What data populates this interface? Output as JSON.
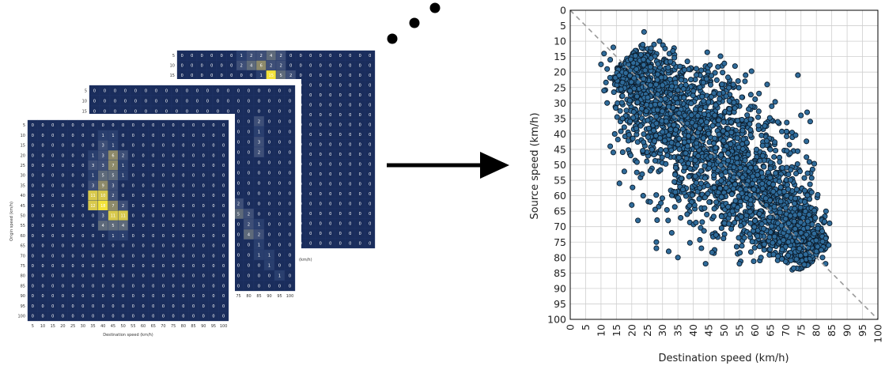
{
  "heatmaps": {
    "description_order": [
      "back",
      "middle",
      "front"
    ],
    "bins": [
      "5",
      "10",
      "15",
      "20",
      "25",
      "30",
      "35",
      "40",
      "45",
      "50",
      "55",
      "60",
      "65",
      "70",
      "75",
      "80",
      "85",
      "90",
      "95",
      "100"
    ],
    "front": {
      "xlabel": "Destination speed (km/h)",
      "ylabel": "Origin speed (km/h)",
      "hot_cells": [
        {
          "r": 1,
          "c": 7,
          "v": "1"
        },
        {
          "r": 1,
          "c": 8,
          "v": "1"
        },
        {
          "r": 2,
          "c": 7,
          "v": "3"
        },
        {
          "r": 2,
          "c": 8,
          "v": "1"
        },
        {
          "r": 3,
          "c": 6,
          "v": "1"
        },
        {
          "r": 3,
          "c": 7,
          "v": "3"
        },
        {
          "r": 3,
          "c": 8,
          "v": "6"
        },
        {
          "r": 3,
          "c": 9,
          "v": "2"
        },
        {
          "r": 4,
          "c": 6,
          "v": "3"
        },
        {
          "r": 4,
          "c": 7,
          "v": "3"
        },
        {
          "r": 4,
          "c": 8,
          "v": "7"
        },
        {
          "r": 4,
          "c": 9,
          "v": "1"
        },
        {
          "r": 5,
          "c": 6,
          "v": "1"
        },
        {
          "r": 5,
          "c": 7,
          "v": "5"
        },
        {
          "r": 5,
          "c": 8,
          "v": "5"
        },
        {
          "r": 5,
          "c": 9,
          "v": "1"
        },
        {
          "r": 6,
          "c": 6,
          "v": "3"
        },
        {
          "r": 6,
          "c": 7,
          "v": "9"
        },
        {
          "r": 6,
          "c": 8,
          "v": "3"
        },
        {
          "r": 7,
          "c": 6,
          "v": "11"
        },
        {
          "r": 7,
          "c": 7,
          "v": "10"
        },
        {
          "r": 7,
          "c": 8,
          "v": "2"
        },
        {
          "r": 8,
          "c": 6,
          "v": "12"
        },
        {
          "r": 8,
          "c": 7,
          "v": "18"
        },
        {
          "r": 8,
          "c": 8,
          "v": "7"
        },
        {
          "r": 8,
          "c": 9,
          "v": "2"
        },
        {
          "r": 9,
          "c": 7,
          "v": "3"
        },
        {
          "r": 9,
          "c": 8,
          "v": "11"
        },
        {
          "r": 9,
          "c": 9,
          "v": "11"
        },
        {
          "r": 10,
          "c": 7,
          "v": "4"
        },
        {
          "r": 10,
          "c": 8,
          "v": "5"
        },
        {
          "r": 10,
          "c": 9,
          "v": "4"
        },
        {
          "r": 11,
          "c": 8,
          "v": "1"
        },
        {
          "r": 11,
          "c": 9,
          "v": "1"
        }
      ]
    },
    "middle": {
      "xlabel": "(km/h)",
      "x_tick_fragment": [
        "75",
        "80",
        "85",
        "90",
        "95",
        "100"
      ],
      "hot_cells": [
        {
          "r": 11,
          "c": 14,
          "v": "2"
        },
        {
          "r": 12,
          "c": 14,
          "v": "5"
        },
        {
          "r": 12,
          "c": 15,
          "v": "2"
        },
        {
          "r": 13,
          "c": 15,
          "v": "2"
        },
        {
          "r": 13,
          "c": 16,
          "v": "1"
        },
        {
          "r": 14,
          "c": 15,
          "v": "4"
        },
        {
          "r": 14,
          "c": 16,
          "v": "2"
        },
        {
          "r": 15,
          "c": 16,
          "v": "1"
        },
        {
          "r": 16,
          "c": 16,
          "v": "1"
        },
        {
          "r": 16,
          "c": 17,
          "v": "1"
        },
        {
          "r": 17,
          "c": 17,
          "v": "1"
        },
        {
          "r": 18,
          "c": 18,
          "v": "1"
        },
        {
          "r": 3,
          "c": 16,
          "v": "2"
        },
        {
          "r": 4,
          "c": 16,
          "v": "1"
        },
        {
          "r": 5,
          "c": 16,
          "v": "3"
        },
        {
          "r": 6,
          "c": 16,
          "v": "2"
        }
      ]
    },
    "back": {
      "hot_cells": [
        {
          "r": 0,
          "c": 6,
          "v": "1"
        },
        {
          "r": 0,
          "c": 7,
          "v": "2"
        },
        {
          "r": 0,
          "c": 8,
          "v": "2"
        },
        {
          "r": 0,
          "c": 9,
          "v": "4"
        },
        {
          "r": 0,
          "c": 10,
          "v": "2"
        },
        {
          "r": 1,
          "c": 6,
          "v": "2"
        },
        {
          "r": 1,
          "c": 7,
          "v": "4"
        },
        {
          "r": 1,
          "c": 8,
          "v": "6"
        },
        {
          "r": 1,
          "c": 9,
          "v": "2"
        },
        {
          "r": 1,
          "c": 10,
          "v": "2"
        },
        {
          "r": 2,
          "c": 8,
          "v": "1"
        },
        {
          "r": 2,
          "c": 9,
          "v": "15"
        },
        {
          "r": 2,
          "c": 10,
          "v": "5"
        },
        {
          "r": 2,
          "c": 11,
          "v": "2"
        }
      ]
    }
  },
  "chart_data": {
    "type": "scatter",
    "xlabel": "Destination speed (km/h)",
    "ylabel": "Source speed (km/h)",
    "xlim": [
      0,
      100
    ],
    "ylim": [
      100,
      0
    ],
    "y_inverted": true,
    "x_ticks": [
      0,
      5,
      10,
      15,
      20,
      25,
      30,
      35,
      40,
      45,
      50,
      55,
      60,
      65,
      70,
      75,
      80,
      85,
      90,
      95,
      100
    ],
    "y_ticks": [
      0,
      5,
      10,
      15,
      20,
      25,
      30,
      35,
      40,
      45,
      50,
      55,
      60,
      65,
      70,
      75,
      80,
      85,
      90,
      95,
      100
    ],
    "grid": true,
    "marker_color": "#2f6b9a",
    "marker_edge": "#0b1c2c",
    "reference_line": {
      "from": [
        0,
        0
      ],
      "to": [
        100,
        100
      ],
      "style": "dashed",
      "color": "#999999"
    },
    "cloud": {
      "axis_points": [
        [
          18,
          16
        ],
        [
          80,
          80
        ]
      ],
      "center": [
        45,
        48
      ],
      "half_width": 15,
      "approx_points": 2600
    },
    "outliers": [
      [
        10,
        17.5
      ],
      [
        11,
        14
      ],
      [
        12,
        19
      ],
      [
        13,
        16
      ],
      [
        14,
        12
      ],
      [
        24,
        7
      ],
      [
        29,
        10
      ],
      [
        13,
        44
      ],
      [
        14,
        46
      ],
      [
        16,
        56
      ],
      [
        20,
        63
      ],
      [
        28,
        75
      ],
      [
        28,
        77
      ],
      [
        32,
        78
      ],
      [
        35,
        80
      ],
      [
        38,
        66
      ],
      [
        57,
        21
      ],
      [
        64,
        24
      ],
      [
        74,
        21
      ],
      [
        75,
        34
      ],
      [
        77,
        33
      ],
      [
        78,
        36
      ],
      [
        58,
        32
      ],
      [
        53,
        24
      ],
      [
        80,
        78
      ],
      [
        82,
        80
      ],
      [
        84,
        76
      ],
      [
        83,
        82
      ],
      [
        44,
        82
      ],
      [
        55,
        82
      ],
      [
        62,
        80
      ],
      [
        22,
        68
      ],
      [
        26,
        62
      ],
      [
        17,
        35
      ],
      [
        12,
        30
      ],
      [
        11,
        26
      ],
      [
        33,
        72
      ]
    ]
  }
}
